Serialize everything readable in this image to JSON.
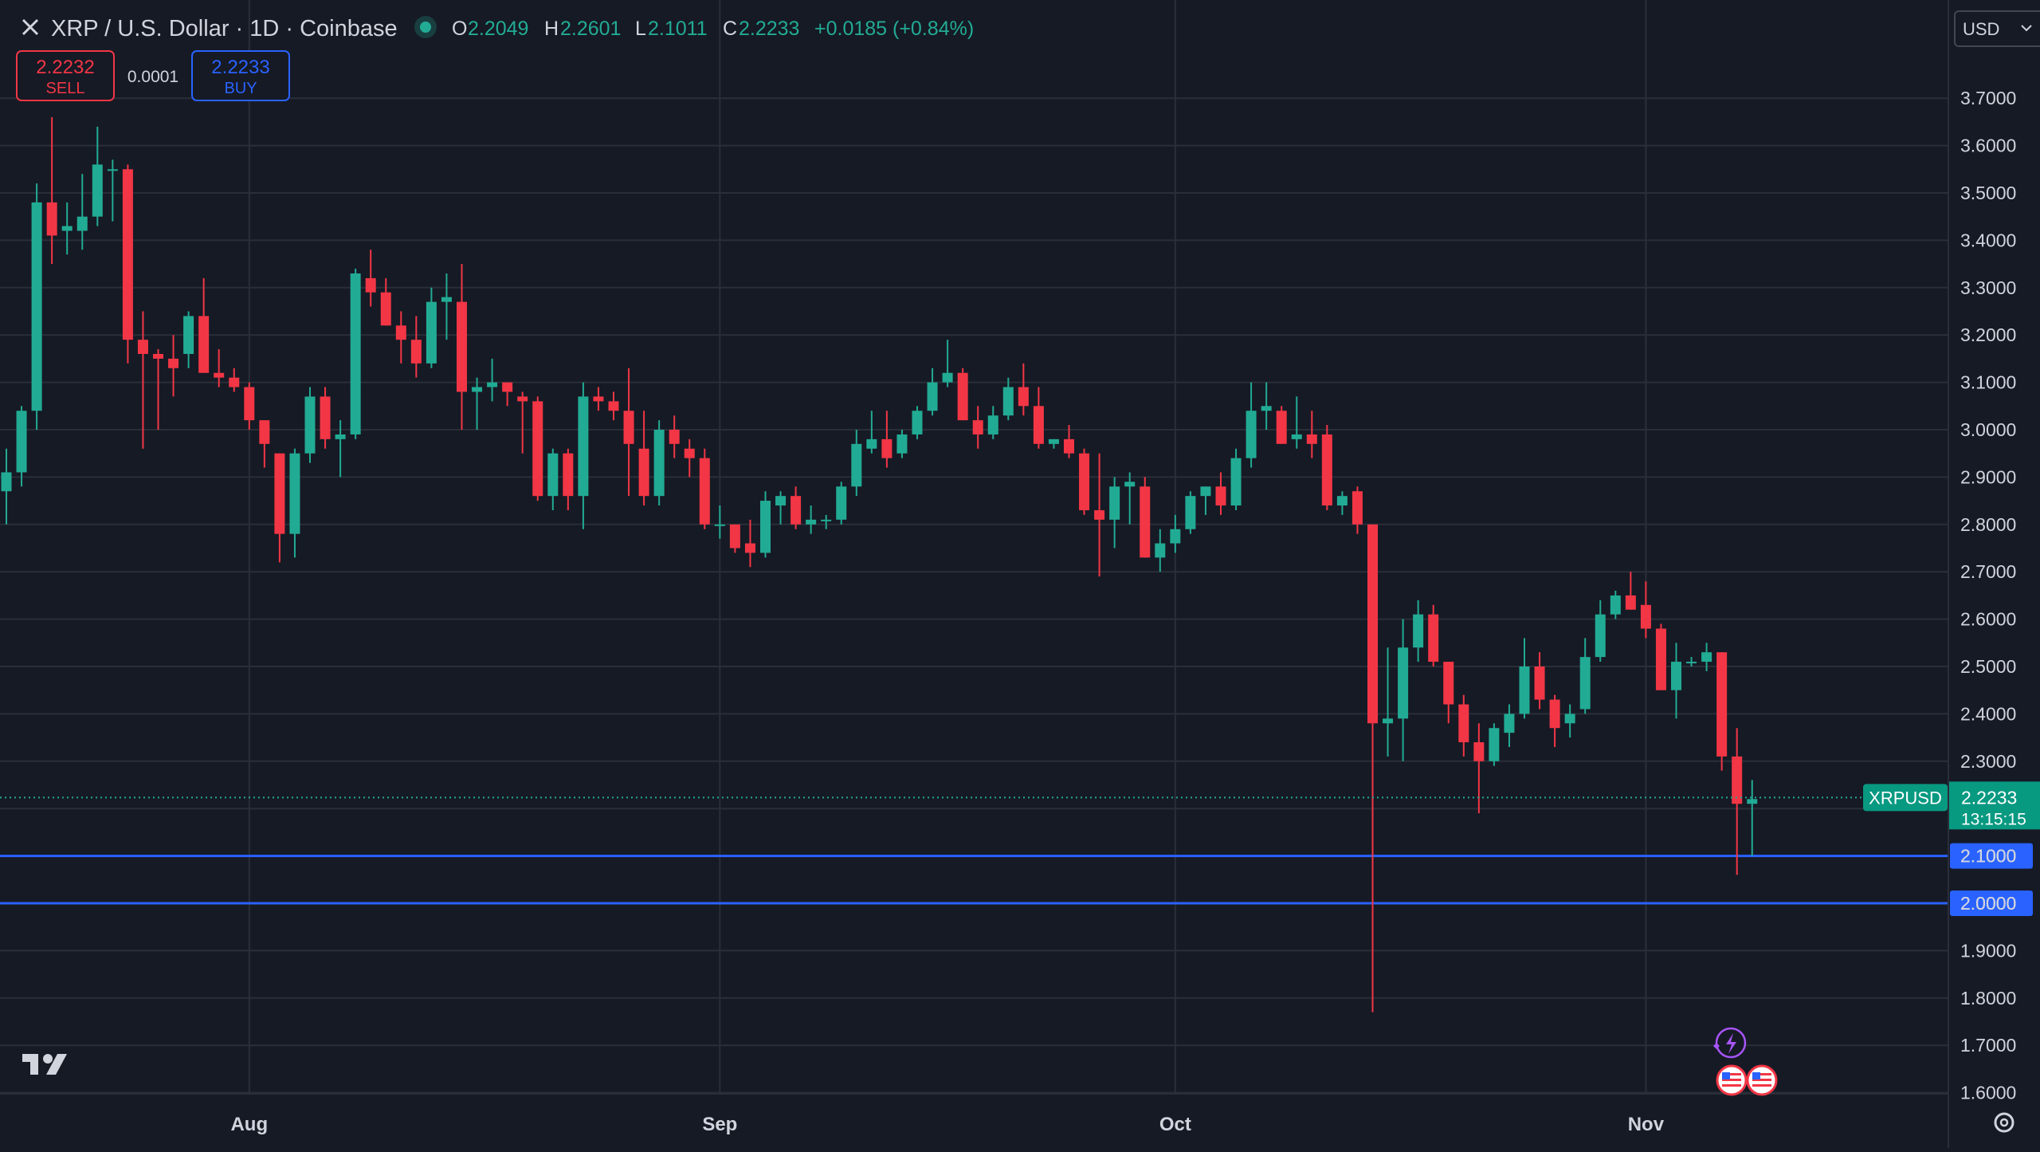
{
  "header": {
    "close_icon": "close-icon",
    "title": "XRP / U.S. Dollar · 1D · Coinbase",
    "status_color": "#22ab94",
    "ohlc": [
      {
        "label": "O",
        "value": "2.2049"
      },
      {
        "label": "H",
        "value": "2.2601"
      },
      {
        "label": "L",
        "value": "2.1011"
      },
      {
        "label": "C",
        "value": "2.2233"
      }
    ],
    "change": "+0.0185 (+0.84%)"
  },
  "trade": {
    "sell_price": "2.2232",
    "sell_label": "SELL",
    "spread": "0.0001",
    "buy_price": "2.2233",
    "buy_label": "BUY"
  },
  "currency_select": {
    "value": "USD"
  },
  "price_tag": {
    "symbol": "XRPUSD",
    "price": "2.2233",
    "countdown": "13:15:15"
  },
  "horizontal_lines": [
    {
      "price": 2.1,
      "label": "2.1000"
    },
    {
      "price": 2.0,
      "label": "2.0000"
    }
  ],
  "logo_icon": "tradingview-logo-icon",
  "settings_icon": "gear-icon",
  "event_icons": [
    "lightning-icon",
    "us-flag-icon",
    "us-flag-icon"
  ],
  "colors": {
    "background": "#161a25",
    "grid": "#2a2e39",
    "up": "#22ab94",
    "down": "#f23645",
    "text": "#d1d4dc",
    "hline": "#2962ff",
    "accent_up": "#089981"
  },
  "chart_data": {
    "type": "candlestick",
    "ylim": [
      1.55,
      3.84
    ],
    "y_ticks": [
      "1.6000",
      "1.7000",
      "1.8000",
      "1.9000",
      "2.0000",
      "2.1000",
      "2.2000",
      "2.3000",
      "2.4000",
      "2.5000",
      "2.6000",
      "2.7000",
      "2.8000",
      "2.9000",
      "3.0000",
      "3.1000",
      "3.2000",
      "3.3000",
      "3.4000",
      "3.5000",
      "3.6000",
      "3.7000"
    ],
    "x_ticks": [
      {
        "label": "Aug",
        "index": 16
      },
      {
        "label": "Sep",
        "index": 47
      },
      {
        "label": "Oct",
        "index": 77
      },
      {
        "label": "Nov",
        "index": 108
      }
    ],
    "candles": [
      {
        "o": 2.87,
        "h": 2.96,
        "l": 2.8,
        "c": 2.91
      },
      {
        "o": 2.91,
        "h": 3.05,
        "l": 2.88,
        "c": 3.04
      },
      {
        "o": 3.04,
        "h": 3.52,
        "l": 3.0,
        "c": 3.48
      },
      {
        "o": 3.48,
        "h": 3.66,
        "l": 3.35,
        "c": 3.41
      },
      {
        "o": 3.42,
        "h": 3.48,
        "l": 3.37,
        "c": 3.43
      },
      {
        "o": 3.42,
        "h": 3.54,
        "l": 3.38,
        "c": 3.45
      },
      {
        "o": 3.45,
        "h": 3.64,
        "l": 3.43,
        "c": 3.56
      },
      {
        "o": 3.55,
        "h": 3.57,
        "l": 3.44,
        "c": 3.55
      },
      {
        "o": 3.55,
        "h": 3.56,
        "l": 3.14,
        "c": 3.19
      },
      {
        "o": 3.19,
        "h": 3.25,
        "l": 2.96,
        "c": 3.16
      },
      {
        "o": 3.16,
        "h": 3.17,
        "l": 3.0,
        "c": 3.15
      },
      {
        "o": 3.15,
        "h": 3.2,
        "l": 3.07,
        "c": 3.13
      },
      {
        "o": 3.16,
        "h": 3.25,
        "l": 3.13,
        "c": 3.24
      },
      {
        "o": 3.24,
        "h": 3.32,
        "l": 3.12,
        "c": 3.12
      },
      {
        "o": 3.12,
        "h": 3.17,
        "l": 3.09,
        "c": 3.11
      },
      {
        "o": 3.11,
        "h": 3.13,
        "l": 3.08,
        "c": 3.09
      },
      {
        "o": 3.09,
        "h": 3.1,
        "l": 3.0,
        "c": 3.02
      },
      {
        "o": 3.02,
        "h": 3.02,
        "l": 2.92,
        "c": 2.97
      },
      {
        "o": 2.95,
        "h": 2.95,
        "l": 2.72,
        "c": 2.78
      },
      {
        "o": 2.78,
        "h": 2.96,
        "l": 2.73,
        "c": 2.95
      },
      {
        "o": 2.95,
        "h": 3.09,
        "l": 2.93,
        "c": 3.07
      },
      {
        "o": 3.07,
        "h": 3.09,
        "l": 2.96,
        "c": 2.98
      },
      {
        "o": 2.98,
        "h": 3.02,
        "l": 2.9,
        "c": 2.99
      },
      {
        "o": 2.99,
        "h": 3.34,
        "l": 2.98,
        "c": 3.33
      },
      {
        "o": 3.32,
        "h": 3.38,
        "l": 3.26,
        "c": 3.29
      },
      {
        "o": 3.29,
        "h": 3.32,
        "l": 3.22,
        "c": 3.22
      },
      {
        "o": 3.22,
        "h": 3.25,
        "l": 3.14,
        "c": 3.19
      },
      {
        "o": 3.19,
        "h": 3.24,
        "l": 3.11,
        "c": 3.14
      },
      {
        "o": 3.14,
        "h": 3.3,
        "l": 3.13,
        "c": 3.27
      },
      {
        "o": 3.27,
        "h": 3.33,
        "l": 3.19,
        "c": 3.28
      },
      {
        "o": 3.27,
        "h": 3.35,
        "l": 3.0,
        "c": 3.08
      },
      {
        "o": 3.08,
        "h": 3.11,
        "l": 3.0,
        "c": 3.09
      },
      {
        "o": 3.09,
        "h": 3.15,
        "l": 3.06,
        "c": 3.1
      },
      {
        "o": 3.1,
        "h": 3.1,
        "l": 3.05,
        "c": 3.08
      },
      {
        "o": 3.07,
        "h": 3.08,
        "l": 2.95,
        "c": 3.06
      },
      {
        "o": 3.06,
        "h": 3.07,
        "l": 2.85,
        "c": 2.86
      },
      {
        "o": 2.86,
        "h": 2.96,
        "l": 2.83,
        "c": 2.95
      },
      {
        "o": 2.95,
        "h": 2.96,
        "l": 2.83,
        "c": 2.86
      },
      {
        "o": 2.86,
        "h": 3.1,
        "l": 2.79,
        "c": 3.07
      },
      {
        "o": 3.07,
        "h": 3.09,
        "l": 3.04,
        "c": 3.06
      },
      {
        "o": 3.06,
        "h": 3.08,
        "l": 3.02,
        "c": 3.04
      },
      {
        "o": 3.04,
        "h": 3.13,
        "l": 2.86,
        "c": 2.97
      },
      {
        "o": 2.96,
        "h": 3.04,
        "l": 2.84,
        "c": 2.86
      },
      {
        "o": 2.86,
        "h": 3.02,
        "l": 2.84,
        "c": 3.0
      },
      {
        "o": 3.0,
        "h": 3.03,
        "l": 2.94,
        "c": 2.97
      },
      {
        "o": 2.96,
        "h": 2.98,
        "l": 2.9,
        "c": 2.94
      },
      {
        "o": 2.94,
        "h": 2.96,
        "l": 2.79,
        "c": 2.8
      },
      {
        "o": 2.8,
        "h": 2.84,
        "l": 2.77,
        "c": 2.8
      },
      {
        "o": 2.8,
        "h": 2.8,
        "l": 2.74,
        "c": 2.75
      },
      {
        "o": 2.76,
        "h": 2.81,
        "l": 2.71,
        "c": 2.74
      },
      {
        "o": 2.74,
        "h": 2.87,
        "l": 2.73,
        "c": 2.85
      },
      {
        "o": 2.84,
        "h": 2.87,
        "l": 2.8,
        "c": 2.86
      },
      {
        "o": 2.86,
        "h": 2.88,
        "l": 2.79,
        "c": 2.8
      },
      {
        "o": 2.8,
        "h": 2.84,
        "l": 2.78,
        "c": 2.81
      },
      {
        "o": 2.81,
        "h": 2.82,
        "l": 2.79,
        "c": 2.81
      },
      {
        "o": 2.81,
        "h": 2.89,
        "l": 2.8,
        "c": 2.88
      },
      {
        "o": 2.88,
        "h": 3.0,
        "l": 2.86,
        "c": 2.97
      },
      {
        "o": 2.96,
        "h": 3.04,
        "l": 2.95,
        "c": 2.98
      },
      {
        "o": 2.98,
        "h": 3.04,
        "l": 2.92,
        "c": 2.94
      },
      {
        "o": 2.95,
        "h": 3.0,
        "l": 2.94,
        "c": 2.99
      },
      {
        "o": 2.99,
        "h": 3.05,
        "l": 2.98,
        "c": 3.04
      },
      {
        "o": 3.04,
        "h": 3.13,
        "l": 3.03,
        "c": 3.1
      },
      {
        "o": 3.1,
        "h": 3.19,
        "l": 3.09,
        "c": 3.12
      },
      {
        "o": 3.12,
        "h": 3.13,
        "l": 3.02,
        "c": 3.02
      },
      {
        "o": 3.02,
        "h": 3.05,
        "l": 2.96,
        "c": 2.99
      },
      {
        "o": 2.99,
        "h": 3.05,
        "l": 2.98,
        "c": 3.03
      },
      {
        "o": 3.03,
        "h": 3.11,
        "l": 3.02,
        "c": 3.09
      },
      {
        "o": 3.09,
        "h": 3.14,
        "l": 3.03,
        "c": 3.05
      },
      {
        "o": 3.05,
        "h": 3.09,
        "l": 2.96,
        "c": 2.97
      },
      {
        "o": 2.97,
        "h": 2.98,
        "l": 2.96,
        "c": 2.98
      },
      {
        "o": 2.98,
        "h": 3.01,
        "l": 2.94,
        "c": 2.95
      },
      {
        "o": 2.95,
        "h": 2.96,
        "l": 2.82,
        "c": 2.83
      },
      {
        "o": 2.83,
        "h": 2.95,
        "l": 2.69,
        "c": 2.81
      },
      {
        "o": 2.81,
        "h": 2.9,
        "l": 2.75,
        "c": 2.88
      },
      {
        "o": 2.88,
        "h": 2.91,
        "l": 2.8,
        "c": 2.89
      },
      {
        "o": 2.88,
        "h": 2.9,
        "l": 2.73,
        "c": 2.73
      },
      {
        "o": 2.73,
        "h": 2.79,
        "l": 2.7,
        "c": 2.76
      },
      {
        "o": 2.76,
        "h": 2.82,
        "l": 2.74,
        "c": 2.79
      },
      {
        "o": 2.79,
        "h": 2.87,
        "l": 2.78,
        "c": 2.86
      },
      {
        "o": 2.86,
        "h": 2.88,
        "l": 2.82,
        "c": 2.88
      },
      {
        "o": 2.88,
        "h": 2.91,
        "l": 2.82,
        "c": 2.84
      },
      {
        "o": 2.84,
        "h": 2.96,
        "l": 2.83,
        "c": 2.94
      },
      {
        "o": 2.94,
        "h": 3.1,
        "l": 2.92,
        "c": 3.04
      },
      {
        "o": 3.04,
        "h": 3.1,
        "l": 3.0,
        "c": 3.05
      },
      {
        "o": 3.04,
        "h": 3.05,
        "l": 2.97,
        "c": 2.97
      },
      {
        "o": 2.98,
        "h": 3.07,
        "l": 2.96,
        "c": 2.99
      },
      {
        "o": 2.99,
        "h": 3.04,
        "l": 2.94,
        "c": 2.97
      },
      {
        "o": 2.99,
        "h": 3.01,
        "l": 2.83,
        "c": 2.84
      },
      {
        "o": 2.84,
        "h": 2.87,
        "l": 2.82,
        "c": 2.86
      },
      {
        "o": 2.87,
        "h": 2.88,
        "l": 2.78,
        "c": 2.8
      },
      {
        "o": 2.8,
        "h": 2.8,
        "l": 1.77,
        "c": 2.38
      },
      {
        "o": 2.38,
        "h": 2.54,
        "l": 2.31,
        "c": 2.39
      },
      {
        "o": 2.39,
        "h": 2.6,
        "l": 2.3,
        "c": 2.54
      },
      {
        "o": 2.54,
        "h": 2.64,
        "l": 2.51,
        "c": 2.61
      },
      {
        "o": 2.61,
        "h": 2.63,
        "l": 2.5,
        "c": 2.51
      },
      {
        "o": 2.51,
        "h": 2.51,
        "l": 2.38,
        "c": 2.42
      },
      {
        "o": 2.42,
        "h": 2.44,
        "l": 2.31,
        "c": 2.34
      },
      {
        "o": 2.34,
        "h": 2.38,
        "l": 2.19,
        "c": 2.3
      },
      {
        "o": 2.3,
        "h": 2.38,
        "l": 2.29,
        "c": 2.37
      },
      {
        "o": 2.36,
        "h": 2.42,
        "l": 2.33,
        "c": 2.4
      },
      {
        "o": 2.4,
        "h": 2.56,
        "l": 2.39,
        "c": 2.5
      },
      {
        "o": 2.5,
        "h": 2.53,
        "l": 2.41,
        "c": 2.43
      },
      {
        "o": 2.43,
        "h": 2.44,
        "l": 2.33,
        "c": 2.37
      },
      {
        "o": 2.38,
        "h": 2.42,
        "l": 2.35,
        "c": 2.4
      },
      {
        "o": 2.41,
        "h": 2.56,
        "l": 2.4,
        "c": 2.52
      },
      {
        "o": 2.52,
        "h": 2.64,
        "l": 2.51,
        "c": 2.61
      },
      {
        "o": 2.61,
        "h": 2.66,
        "l": 2.6,
        "c": 2.65
      },
      {
        "o": 2.65,
        "h": 2.7,
        "l": 2.62,
        "c": 2.62
      },
      {
        "o": 2.63,
        "h": 2.68,
        "l": 2.56,
        "c": 2.58
      },
      {
        "o": 2.58,
        "h": 2.59,
        "l": 2.45,
        "c": 2.45
      },
      {
        "o": 2.45,
        "h": 2.55,
        "l": 2.39,
        "c": 2.51
      },
      {
        "o": 2.51,
        "h": 2.52,
        "l": 2.5,
        "c": 2.51
      },
      {
        "o": 2.51,
        "h": 2.55,
        "l": 2.49,
        "c": 2.53
      },
      {
        "o": 2.53,
        "h": 2.53,
        "l": 2.28,
        "c": 2.31
      },
      {
        "o": 2.31,
        "h": 2.37,
        "l": 2.06,
        "c": 2.21
      },
      {
        "o": 2.21,
        "h": 2.26,
        "l": 2.1,
        "c": 2.22
      }
    ]
  }
}
